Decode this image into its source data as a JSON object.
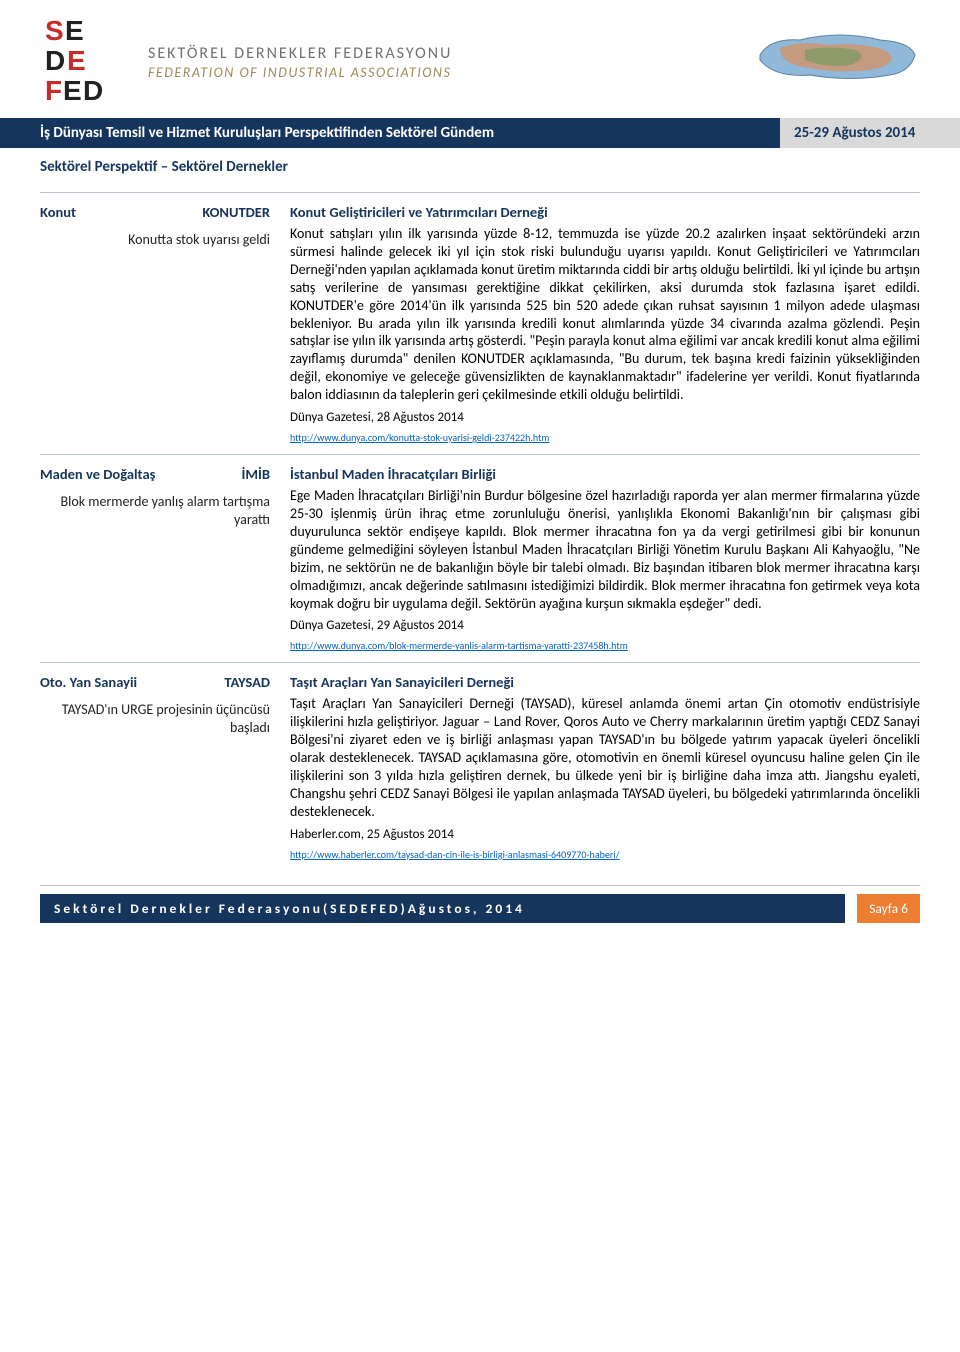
{
  "header": {
    "org_line1": "SEKTÖREL DERNEKLER FEDERASYONU",
    "org_line2": "FEDERATION OF INDUSTRIAL ASSOCIATIONS",
    "logo_text": "SE DE FED",
    "logo_colors": {
      "s": "#c92a2a",
      "e": "#222222",
      "d": "#c92a2a",
      "f": "#222222"
    }
  },
  "title_bar": {
    "left": "İş Dünyası Temsil ve Hizmet Kuruluşları Perspektifinden Sektörel Gündem",
    "right": "25-29 Ağustos 2014"
  },
  "subtitle": "Sektörel Perspektif – Sektörel Dernekler",
  "entries": [
    {
      "sector": "Konut",
      "abbrev": "KONUTDER",
      "summary": "Konutta stok uyarısı geldi",
      "org": "Konut Geliştiricileri ve Yatırımcıları Derneği",
      "body": "Konut satışları yılın ilk yarısında yüzde 8-12, temmuzda ise yüzde 20.2 azalırken inşaat sektöründeki arzın sürmesi halinde gelecek iki yıl için stok riski bulunduğu uyarısı yapıldı. Konut Geliştiricileri ve Yatırımcıları Derneği'nden yapılan açıklamada konut üretim miktarında ciddi bir artış olduğu belirtildi. İki yıl içinde bu artışın satış verilerine de yansıması gerektiğine dikkat çekilirken, aksi durumda stok fazlasına işaret edildi. KONUTDER'e göre 2014'ün ilk yarısında 525 bin 520 adede çıkan ruhsat sayısının 1 milyon adede ulaşması bekleniyor. Bu arada yılın ilk yarısında kredili konut alımlarında yüzde 34 civarında azalma gözlendi. Peşin satışlar ise yılın ilk yarısında artış gösterdi. \"Peşin parayla konut alma eğilimi var ancak kredili konut alma eğilimi zayıflamış durumda\" denilen KONUTDER açıklamasında, \"Bu durum, tek başına kredi faizinin yüksekliğinden değil, ekonomiye ve geleceğe güvensizlikten de kaynaklanmaktadır\" ifadelerine yer verildi. Konut fiyatlarında balon iddiasının da taleplerin geri çekilmesinde etkili olduğu belirtildi.",
      "source": "Dünya Gazetesi, 28 Ağustos 2014",
      "link": "http://www.dunya.com/konutta-stok-uyarisi-geldi-237422h.htm"
    },
    {
      "sector": "Maden ve Doğaltaş",
      "abbrev": "İMİB",
      "summary": "Blok mermerde yanlış alarm tartışma yarattı",
      "org": "İstanbul Maden İhracatçıları Birliği",
      "body": "Ege Maden İhracatçıları Birliği'nin Burdur bölgesine özel hazırladığı raporda yer alan mermer firmalarına yüzde 25-30 işlenmiş ürün ihraç etme zorunluluğu önerisi, yanlışlıkla Ekonomi Bakanlığı'nın bir çalışması gibi duyurulunca sektör endişeye kapıldı. Blok mermer ihracatına fon ya da vergi getirilmesi gibi bir konunun gündeme gelmediğini söyleyen İstanbul Maden İhracatçıları Birliği Yönetim Kurulu Başkanı Ali Kahyaoğlu, \"Ne bizim, ne sektörün ne de bakanlığın böyle bir talebi olmadı. Biz başından itibaren blok mermer ihracatına karşı olmadığımızı, ancak değerinde satılmasını istediğimizi bildirdik. Blok mermer ihracatına fon getirmek veya kota koymak doğru bir uygulama değil. Sektörün ayağına kurşun sıkmakla eşdeğer\" dedi.",
      "source": "Dünya Gazetesi, 29 Ağustos 2014",
      "link": "http://www.dunya.com/blok-mermerde-yanlis-alarm-tartisma-yaratti-237458h.htm"
    },
    {
      "sector": "Oto. Yan Sanayii",
      "abbrev": "TAYSAD",
      "summary": "TAYSAD'ın URGE projesinin üçüncüsü başladı",
      "org": "Taşıt Araçları Yan Sanayicileri Derneği",
      "body": "Taşıt Araçları Yan Sanayicileri Derneği (TAYSAD), küresel anlamda önemi artan Çin otomotiv endüstrisiyle ilişkilerini hızla geliştiriyor. Jaguar – Land Rover, Qoros Auto ve Cherry markalarının üretim yaptığı CEDZ Sanayi Bölgesi'ni ziyaret eden ve iş birliği anlaşması yapan TAYSAD'ın bu bölgede yatırım yapacak üyeleri öncelikli olarak desteklenecek. TAYSAD açıklamasına göre, otomotivin en önemli küresel oyuncusu haline gelen Çin ile ilişkilerini son 3 yılda hızla geliştiren dernek, bu ülkede yeni bir iş birliğine daha imza attı. Jiangshu eyaleti, Changshu şehri CEDZ Sanayi Bölgesi ile yapılan anlaşmada TAYSAD üyeleri, bu bölgedeki yatırımlarında öncelikli desteklenecek.",
      "source": "Haberler.com, 25 Ağustos 2014",
      "link": "http://www.haberler.com/taysad-dan-cin-ile-is-birligi-anlasmasi-6409770-haberi/"
    }
  ],
  "footer": {
    "text": "Sektörel Dernekler Federasyonu(SEDEFED)Ağustos, 2014",
    "page": "Sayfa 6"
  },
  "colors": {
    "primary": "#16355d",
    "accent": "#ed7d31",
    "link": "#0563c1",
    "header_gray": "#707070",
    "header_gold": "#a08858",
    "border": "#b8c4d6",
    "title_right_bg": "#d9d9d9"
  }
}
